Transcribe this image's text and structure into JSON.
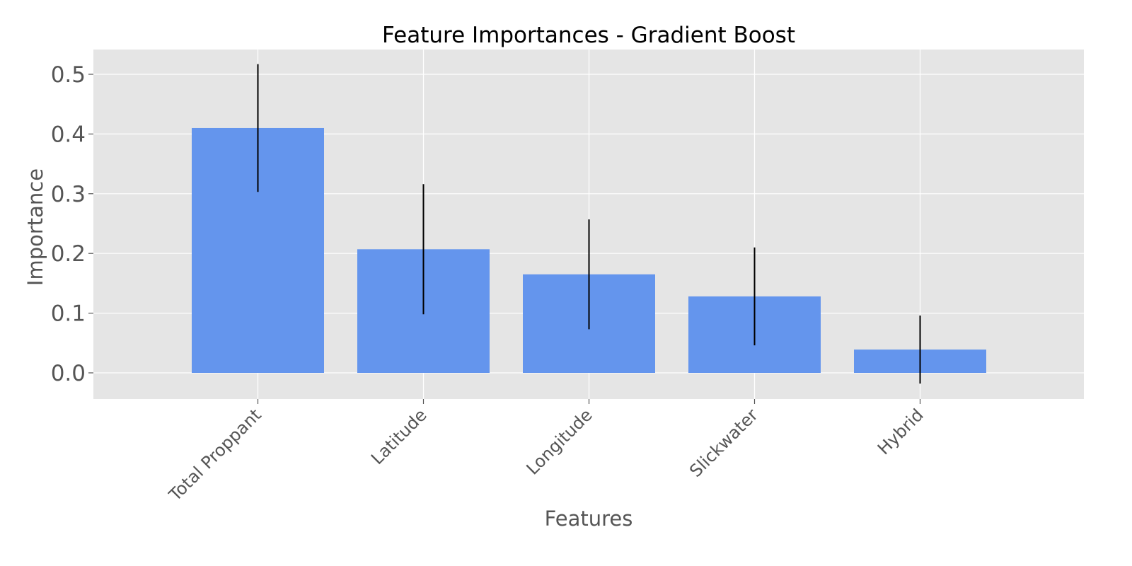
{
  "chart_data": {
    "type": "bar",
    "title": "Feature Importances - Gradient Boost",
    "xlabel": "Features",
    "ylabel": "Importance",
    "categories": [
      "Total Proppant",
      "Latitude",
      "Longitude",
      "Slickwater",
      "Hybrid"
    ],
    "values": [
      0.41,
      0.207,
      0.165,
      0.128,
      0.039
    ],
    "error": [
      0.107,
      0.109,
      0.092,
      0.082,
      0.057
    ],
    "ylim": [
      -0.045,
      0.543
    ],
    "yticks": [
      0.0,
      0.1,
      0.2,
      0.3,
      0.4,
      0.5
    ],
    "ytick_labels": [
      "0.0",
      "0.1",
      "0.2",
      "0.3",
      "0.4",
      "0.5"
    ],
    "grid": true,
    "colors": {
      "bar": "#6495ED",
      "error_bar": "#000000",
      "plot_background": "#E5E5E5",
      "grid": "#FFFFFF",
      "tick": "#555555"
    }
  }
}
